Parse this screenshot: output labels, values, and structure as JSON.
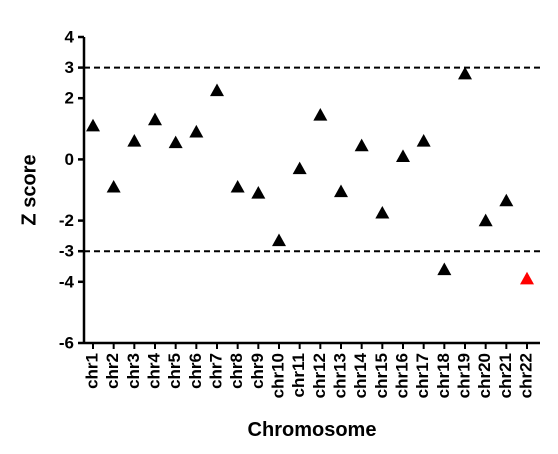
{
  "chart_data": {
    "type": "scatter",
    "x_label": "Chromosome",
    "y_label": "Z score",
    "categories": [
      "chr1",
      "chr2",
      "chr3",
      "chr4",
      "chr5",
      "chr6",
      "chr7",
      "chr8",
      "chr9",
      "chr10",
      "chr11",
      "chr12",
      "chr13",
      "chr14",
      "chr15",
      "chr16",
      "chr17",
      "chr18",
      "chr19",
      "chr20",
      "chr21",
      "chr22"
    ],
    "values": [
      1.1,
      -0.9,
      0.6,
      1.3,
      0.55,
      0.9,
      2.25,
      -0.9,
      -1.1,
      -2.65,
      -0.3,
      1.45,
      -1.05,
      0.45,
      -1.75,
      0.1,
      0.6,
      -3.6,
      2.8,
      -2.0,
      -1.35,
      -3.9
    ],
    "colors": [
      "#000000",
      "#000000",
      "#000000",
      "#000000",
      "#000000",
      "#000000",
      "#000000",
      "#000000",
      "#000000",
      "#000000",
      "#000000",
      "#000000",
      "#000000",
      "#000000",
      "#000000",
      "#000000",
      "#000000",
      "#000000",
      "#000000",
      "#000000",
      "#000000",
      "#ff0000"
    ],
    "marker": "triangle",
    "ylim": [
      -6,
      4
    ],
    "yticks": [
      -6,
      -4,
      -3,
      -2,
      0,
      2,
      3,
      4
    ],
    "reference_lines": [
      3,
      -3
    ],
    "grid": false
  }
}
